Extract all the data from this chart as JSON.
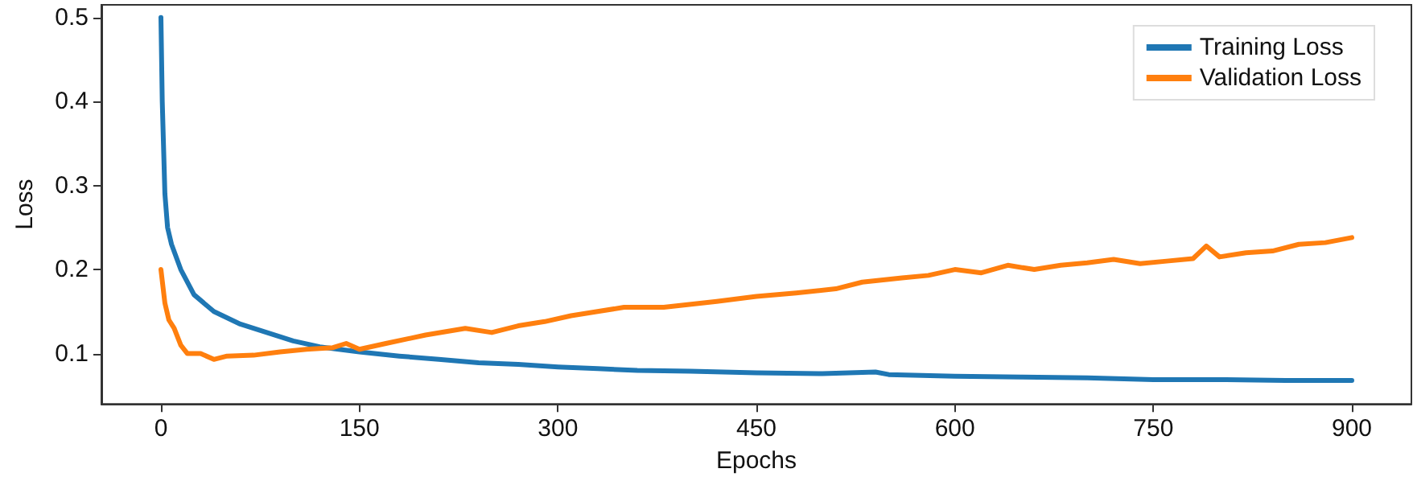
{
  "chart_data": {
    "type": "line",
    "xlabel": "Epochs",
    "ylabel": "Loss",
    "xlim": [
      -45,
      945
    ],
    "xticks": [
      0,
      150,
      300,
      450,
      600,
      750,
      900
    ],
    "ylim": [
      0.04,
      0.515
    ],
    "yticks": [
      0.1,
      0.2,
      0.3,
      0.4,
      0.5
    ],
    "grid": false,
    "legend": "top right",
    "marker": "none",
    "line_style": "solid",
    "series": [
      {
        "name": "Training Loss",
        "color": "#1f77b4",
        "x": [
          0,
          1,
          3,
          5,
          8,
          15,
          25,
          40,
          60,
          80,
          100,
          120,
          150,
          180,
          210,
          240,
          270,
          300,
          330,
          360,
          400,
          450,
          500,
          540,
          550,
          600,
          650,
          700,
          750,
          800,
          850,
          900
        ],
        "values": [
          0.5,
          0.4,
          0.29,
          0.25,
          0.23,
          0.2,
          0.17,
          0.15,
          0.135,
          0.125,
          0.115,
          0.108,
          0.102,
          0.097,
          0.093,
          0.089,
          0.087,
          0.084,
          0.082,
          0.08,
          0.079,
          0.077,
          0.076,
          0.078,
          0.075,
          0.073,
          0.072,
          0.071,
          0.069,
          0.069,
          0.068,
          0.068
        ]
      },
      {
        "name": "Validation Loss",
        "color": "#ff7f0e",
        "x": [
          0,
          3,
          6,
          10,
          15,
          20,
          30,
          40,
          50,
          70,
          90,
          110,
          130,
          140,
          150,
          170,
          200,
          230,
          250,
          270,
          290,
          310,
          330,
          350,
          380,
          420,
          450,
          480,
          510,
          530,
          560,
          580,
          600,
          620,
          640,
          660,
          680,
          700,
          720,
          740,
          760,
          780,
          790,
          800,
          820,
          840,
          860,
          880,
          900
        ],
        "values": [
          0.2,
          0.16,
          0.14,
          0.13,
          0.11,
          0.1,
          0.1,
          0.093,
          0.097,
          0.098,
          0.102,
          0.105,
          0.107,
          0.112,
          0.105,
          0.112,
          0.122,
          0.13,
          0.125,
          0.133,
          0.138,
          0.145,
          0.15,
          0.155,
          0.155,
          0.162,
          0.168,
          0.172,
          0.177,
          0.185,
          0.19,
          0.193,
          0.2,
          0.196,
          0.205,
          0.2,
          0.205,
          0.208,
          0.212,
          0.207,
          0.21,
          0.213,
          0.228,
          0.215,
          0.22,
          0.222,
          0.23,
          0.232,
          0.238
        ]
      }
    ]
  }
}
